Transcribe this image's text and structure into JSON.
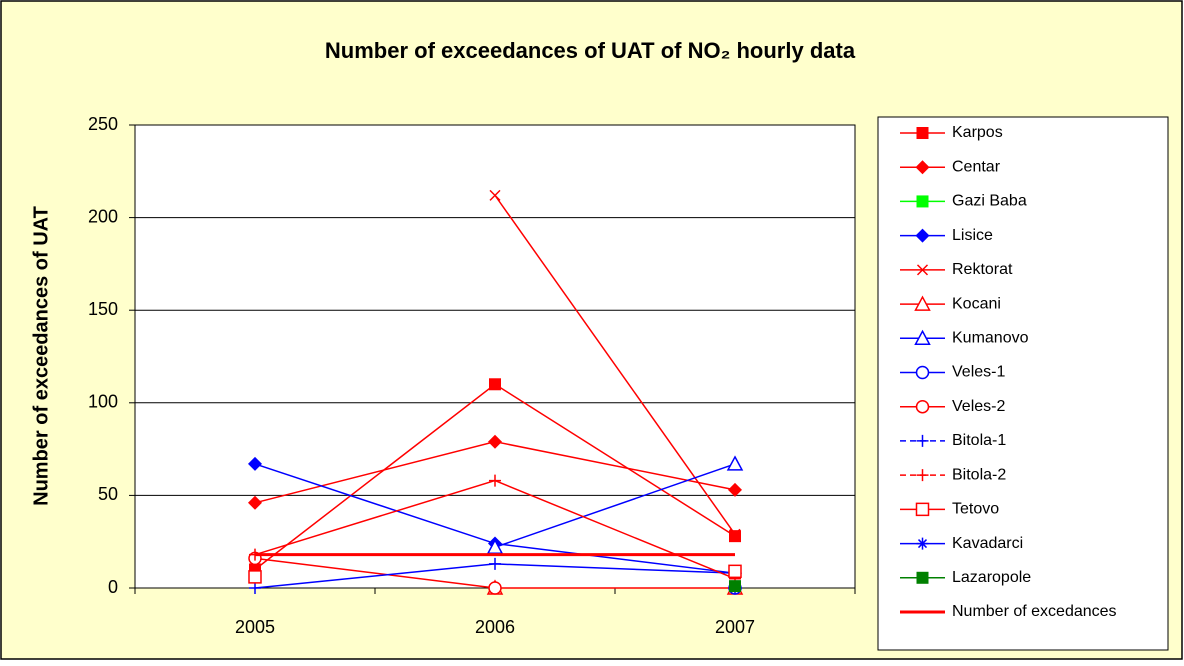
{
  "chart_data": {
    "type": "line",
    "title": "Number of exceedances of UAT of NO₂ hourly data",
    "y_label": "Number of exceedances of UAT",
    "categories": [
      "2005",
      "2006",
      "2007"
    ],
    "ylim": [
      0,
      250
    ],
    "yticks": [
      0,
      50,
      100,
      150,
      200,
      250
    ],
    "grid": true,
    "legend": "right",
    "series": [
      {
        "name": "Karpos",
        "color": "#ff0000",
        "marker": "square",
        "values": [
          10,
          110,
          28
        ]
      },
      {
        "name": "Centar",
        "color": "#ff0000",
        "marker": "diamond",
        "values": [
          46,
          79,
          53
        ]
      },
      {
        "name": "Gazi Baba",
        "color": "#00ff00",
        "marker": "square",
        "values": [
          null,
          null,
          null
        ]
      },
      {
        "name": "Lisice",
        "color": "#0000ff",
        "marker": "diamond",
        "values": [
          67,
          24,
          8
        ]
      },
      {
        "name": "Rektorat",
        "color": "#ff0000",
        "marker": "x",
        "values": [
          null,
          212,
          29
        ]
      },
      {
        "name": "Kocani",
        "color": "#ff0000",
        "marker": "triangle",
        "values": [
          null,
          0,
          0
        ]
      },
      {
        "name": "Kumanovo",
        "color": "#0000ff",
        "marker": "triangle",
        "values": [
          null,
          22,
          67
        ]
      },
      {
        "name": "Veles-1",
        "color": "#0000ff",
        "marker": "circle",
        "values": [
          null,
          null,
          0
        ]
      },
      {
        "name": "Veles-2",
        "color": "#ff0000",
        "marker": "circle",
        "values": [
          16,
          0,
          null
        ]
      },
      {
        "name": "Bitola-1",
        "color": "#0000ff",
        "marker": "plus",
        "dashed": true,
        "values": [
          0,
          13,
          8
        ]
      },
      {
        "name": "Bitola-2",
        "color": "#ff0000",
        "marker": "plus",
        "dashed": true,
        "values": [
          18,
          58,
          5
        ]
      },
      {
        "name": "Tetovo",
        "color": "#ff0000",
        "marker": "open-square",
        "values": [
          6,
          null,
          9
        ]
      },
      {
        "name": "Kavadarci",
        "color": "#0000ff",
        "marker": "asterisk",
        "values": [
          null,
          null,
          0
        ]
      },
      {
        "name": "Lazaropole",
        "color": "#008000",
        "marker": "square",
        "values": [
          null,
          null,
          1
        ]
      },
      {
        "name": "Number of excedances",
        "color": "#ff0000",
        "marker": "none",
        "line_width": 3,
        "values": [
          18,
          18,
          18
        ]
      }
    ]
  }
}
